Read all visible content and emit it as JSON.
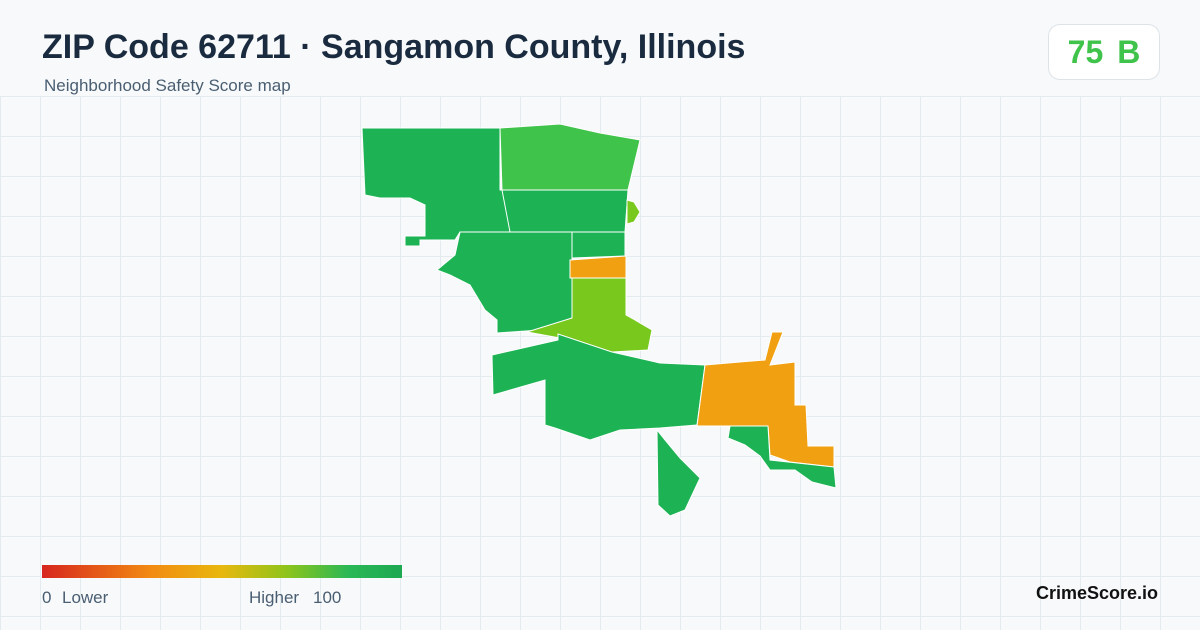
{
  "header": {
    "title": "ZIP Code 62711 · Sangamon County, Illinois",
    "subtitle": "Neighborhood Safety Score map",
    "score": 75,
    "grade": "B"
  },
  "legend": {
    "min": 0,
    "min_label": "Lower",
    "max_label": "Higher",
    "max": 100
  },
  "footer": {
    "brand": "CrimeScore.io"
  }
}
